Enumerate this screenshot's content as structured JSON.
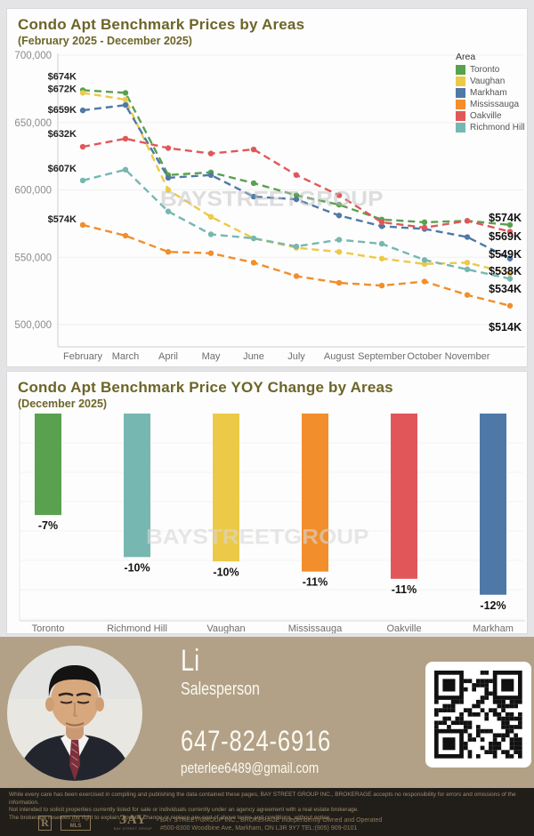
{
  "colors": {
    "title_accent": "#6d6528",
    "page_background": "#e4e4e6",
    "card_background": "#fdfdfd",
    "footer_background": "#b2a186",
    "legal_background": "#211e1a",
    "legal_text": "#9e8c69",
    "toronto": "#59a14f",
    "vaughan": "#edc948",
    "markham": "#4e79a7",
    "mississauga": "#f28e2b",
    "oakville": "#e15759",
    "richmond_hill": "#76b7b2"
  },
  "chart_data": [
    {
      "type": "line",
      "title": "Condo Apt Benchmark Prices by Areas",
      "subtitle": "(February 2025 - December 2025)",
      "watermark": "BAYSTREETGROUP",
      "legend_title": "Area",
      "legend_position": "top-right",
      "grid": true,
      "line_style": "dashed-with-markers",
      "y_axis": {
        "ticks": [
          "700,000",
          "650,000",
          "600,000",
          "550,000",
          "500,000"
        ],
        "min": 500000,
        "max": 700000
      },
      "x_labels": [
        "February",
        "March",
        "April",
        "May",
        "June",
        "July",
        "August",
        "September",
        "October",
        "November"
      ],
      "x_note_last_point": "December (label not shown)",
      "units": "thousands of $",
      "series": [
        {
          "name": "Toronto",
          "color": "#59a14f",
          "start_label": "$674K",
          "end_label": "$574K",
          "values": [
            674,
            672,
            611,
            613,
            605,
            596,
            589,
            578,
            576,
            577,
            574
          ]
        },
        {
          "name": "Vaughan",
          "color": "#edc948",
          "start_label": "$672K",
          "end_label": "$538K",
          "values": [
            672,
            667,
            600,
            580,
            564,
            557,
            554,
            549,
            545,
            546,
            538
          ]
        },
        {
          "name": "Markham",
          "color": "#4e79a7",
          "start_label": "$659K",
          "end_label": "$549K",
          "values": [
            659,
            663,
            609,
            611,
            595,
            593,
            581,
            573,
            571,
            565,
            549
          ]
        },
        {
          "name": "Mississauga",
          "color": "#f28e2b",
          "start_label": "$574K",
          "end_label": "$514K",
          "values": [
            574,
            566,
            554,
            553,
            546,
            536,
            531,
            529,
            532,
            522,
            514
          ]
        },
        {
          "name": "Oakville",
          "color": "#e15759",
          "start_label": "$632K",
          "end_label": "$569K",
          "values": [
            632,
            638,
            631,
            627,
            630,
            611,
            596,
            576,
            572,
            577,
            569
          ]
        },
        {
          "name": "Richmond Hill",
          "color": "#76b7b2",
          "start_label": "$607K",
          "end_label": "$534K",
          "values": [
            607,
            615,
            584,
            567,
            564,
            558,
            563,
            560,
            548,
            541,
            534
          ]
        }
      ]
    },
    {
      "type": "bar",
      "title": "Condo Apt Benchmark Price YOY Change by Areas",
      "subtitle": "(December 2025)",
      "watermark": "BAYSTREETGROUP",
      "grid": true,
      "ylim": [
        -13,
        0
      ],
      "bars": [
        {
          "name": "Toronto",
          "color": "#59a14f",
          "label": "-7%",
          "value": -7
        },
        {
          "name": "Richmond Hill",
          "color": "#76b7b2",
          "label": "-10%",
          "value": -9.9
        },
        {
          "name": "Vaughan",
          "color": "#edc948",
          "label": "-10%",
          "value": -10.2
        },
        {
          "name": "Mississauga",
          "color": "#f28e2b",
          "label": "-11%",
          "value": -10.9
        },
        {
          "name": "Oakville",
          "color": "#e15759",
          "label": "-11%",
          "value": -11.4
        },
        {
          "name": "Markham",
          "color": "#4e79a7",
          "label": "-12%",
          "value": -12.5
        }
      ]
    }
  ],
  "footer": {
    "name": "Li",
    "title": "Salesperson",
    "phone": "647-824-6916",
    "email": "peterlee6489@gmail.com"
  },
  "legal": {
    "lines": [
      "While every care has been exercised in compiling and publishing the data contained these pages,  BAY STREET GROUP INC., BROKERAGE  accepts no responsibility for errors and omissions of the information.",
      "Not intended to solicit properties currently listed for sale or individuals currently under an agency agreement with a real estate brokerage.",
      "The brokerage reserves the right to explain, update, change or replace any part of above terms and conditions. without notice."
    ],
    "realtor_logo": "R",
    "mls_logo": "MLS",
    "bay_logo": "ЗAY",
    "bay_caption": "BAY STREET GROUP",
    "brokerage_line1": "BAY STREET GROUP INC., BROKERAGE Independently Owned and Operated",
    "brokerage_line2": "#500-8300 Woodbine Ave, Markham, ON L3R 9Y7 TEL:(905) 909-0101"
  }
}
